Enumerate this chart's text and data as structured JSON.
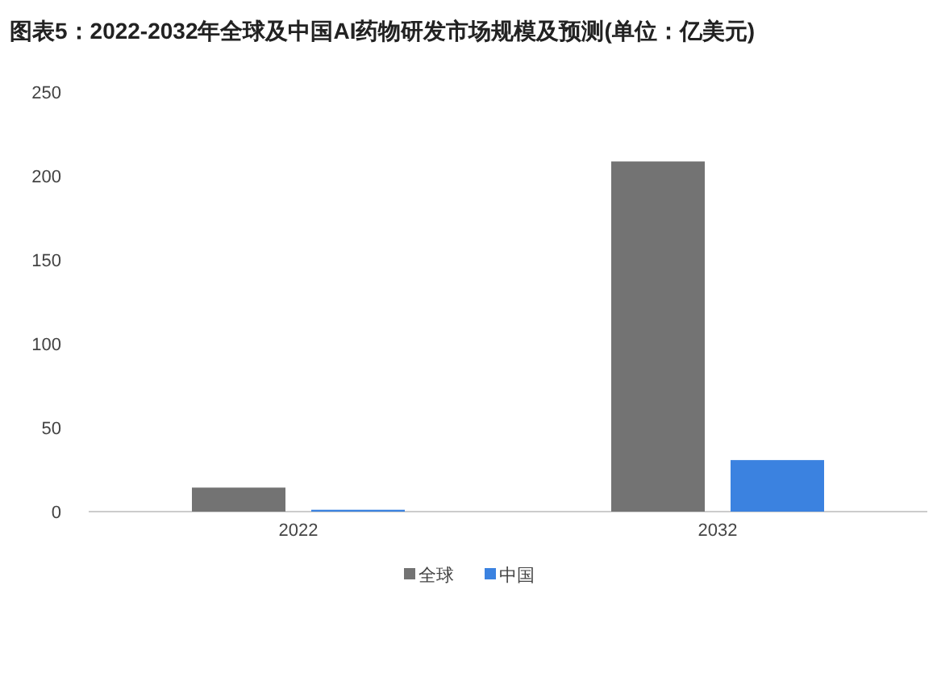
{
  "chart_data": {
    "type": "bar",
    "title": "图表5：2022-2032年全球及中国AI药物研发市场规模及预测(单位：亿美元)",
    "categories": [
      "2022",
      "2032"
    ],
    "series": [
      {
        "name": "全球",
        "color": "#737373",
        "values": [
          14.3,
          208.6
        ]
      },
      {
        "name": "中国",
        "color": "#3b82e0",
        "values": [
          1.1,
          30.7
        ]
      }
    ],
    "ylim": [
      0,
      250
    ],
    "yticks": [
      0,
      50,
      100,
      150,
      200,
      250
    ],
    "grid": false,
    "legend": "bottom"
  }
}
